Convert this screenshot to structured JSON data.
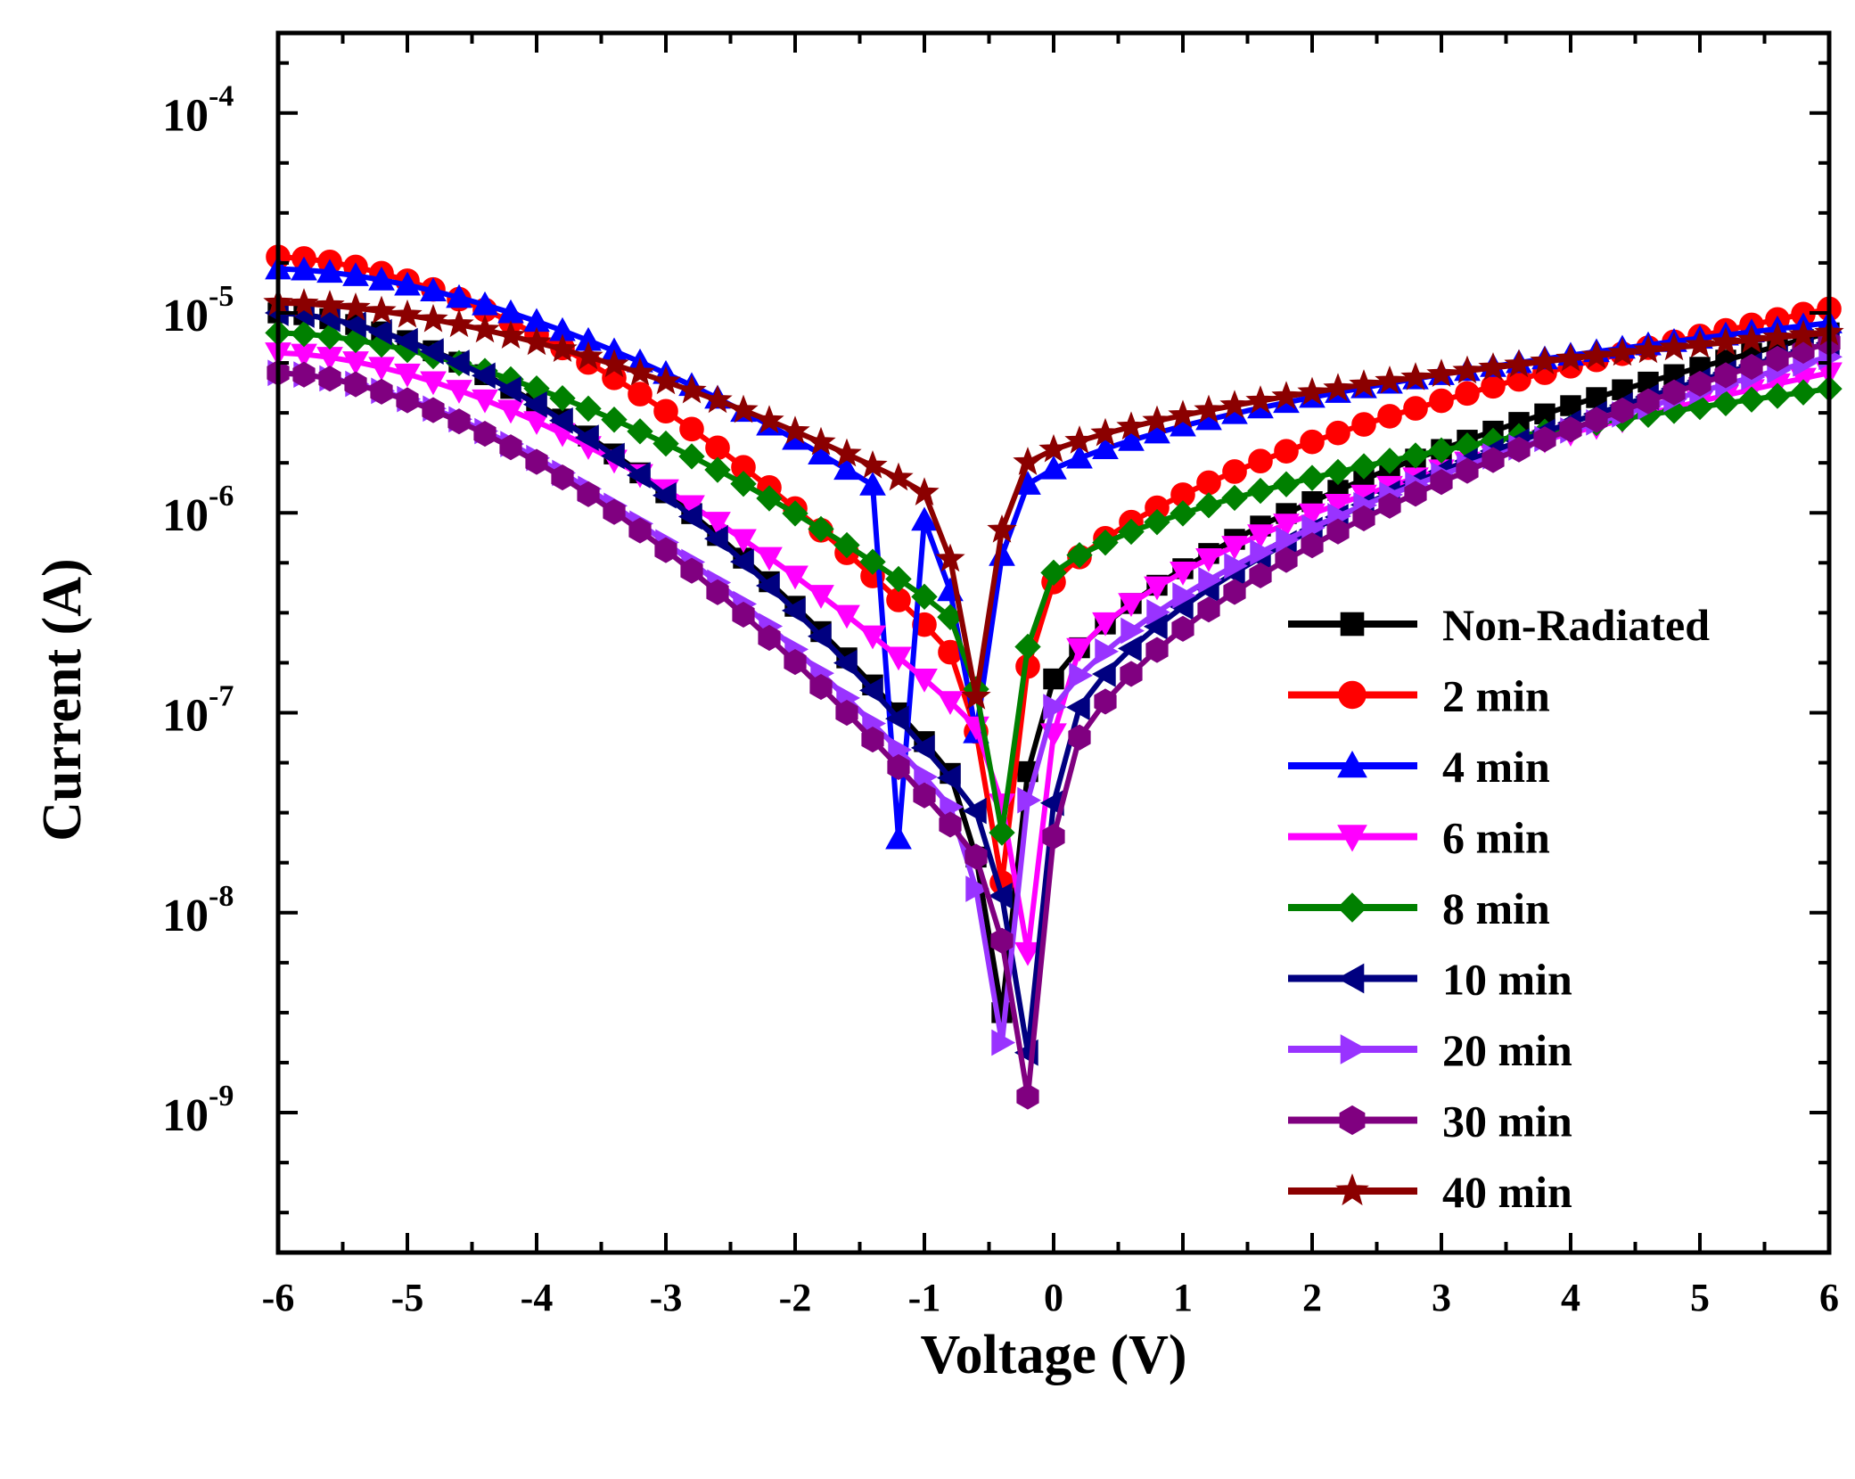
{
  "chart_data": {
    "type": "line",
    "title": "",
    "xlabel": "Voltage (V)",
    "ylabel": "Current (A)",
    "xlim": [
      -6,
      6
    ],
    "ylim_log10": [
      -9.7,
      -3.6
    ],
    "y_scale": "log",
    "x_ticks": [
      "-6",
      "-5",
      "-4",
      "-3",
      "-2",
      "-1",
      "0",
      "1",
      "2",
      "3",
      "4",
      "5",
      "6"
    ],
    "y_ticks": [
      {
        "base": "10",
        "exp": "-9"
      },
      {
        "base": "10",
        "exp": "-8"
      },
      {
        "base": "10",
        "exp": "-7"
      },
      {
        "base": "10",
        "exp": "-6"
      },
      {
        "base": "10",
        "exp": "-5"
      },
      {
        "base": "10",
        "exp": "-4"
      }
    ],
    "legend_position": "lower-right",
    "series": [
      {
        "name": "Non-Radiated",
        "color": "#000000",
        "marker": "square",
        "dip_v": -0.4,
        "dip_log": -8.5,
        "left_start": -5.0,
        "right_end": -5.1
      },
      {
        "name": "2 min",
        "color": "#ff0000",
        "marker": "circle",
        "dip_v": -0.4,
        "dip_log": -7.85,
        "left_start": -4.72,
        "right_end": -4.98
      },
      {
        "name": "4 min",
        "color": "#0000ff",
        "marker": "triangle-up",
        "dip_v": -0.6,
        "dip_log": -7.1,
        "left_start": -4.78,
        "right_end": -5.05,
        "spike_v": -1.2,
        "spike_log": -7.63
      },
      {
        "name": " 6 min",
        "color": "#ff00ff",
        "marker": "triangle-down",
        "dip_v": -0.2,
        "dip_log": -8.2,
        "left_start": -5.2,
        "right_end": -5.3
      },
      {
        "name": "8 min",
        "color": "#008000",
        "marker": "diamond",
        "dip_v": -0.4,
        "dip_log": -7.6,
        "left_start": -5.1,
        "right_end": -5.38
      },
      {
        "name": "10 min",
        "color": "#000080",
        "marker": "triangle-left",
        "dip_v": -0.2,
        "dip_log": -8.7,
        "left_start": -5.0,
        "right_end": -5.15
      },
      {
        "name": "20 min",
        "color": "#9933ff",
        "marker": "triangle-right",
        "dip_v": -0.4,
        "dip_log": -8.65,
        "left_start": -5.3,
        "right_end": -5.22
      },
      {
        "name": "30 min",
        "color": "#800080",
        "marker": "hexagon",
        "dip_v": -0.2,
        "dip_log": -8.92,
        "left_start": -5.3,
        "right_end": -5.15
      },
      {
        "name": "40 min",
        "color": "#8b0000",
        "marker": "star",
        "dip_v": -0.6,
        "dip_log": -6.92,
        "left_start": -4.95,
        "right_end": -5.1
      }
    ]
  }
}
